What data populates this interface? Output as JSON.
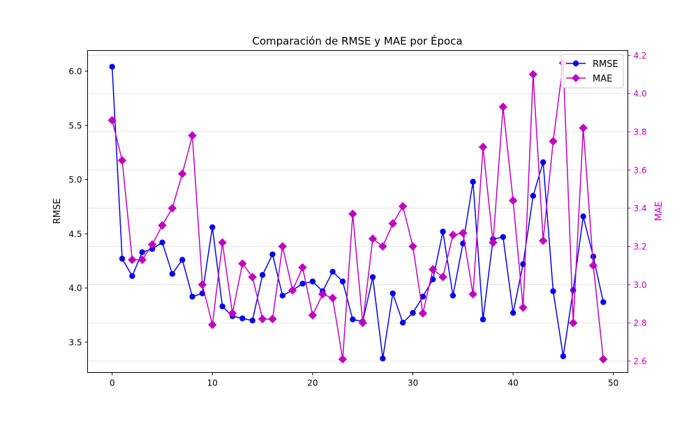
{
  "chart_data": {
    "type": "line",
    "title": "Comparación de RMSE y MAE por Época",
    "xlabel": "",
    "ylabel": "RMSE",
    "y2label": "MAE",
    "xlim": [
      -2.45,
      51.45
    ],
    "ylim": [
      3.22,
      6.19
    ],
    "y2lim": [
      2.54,
      4.225
    ],
    "xticks": [
      0,
      10,
      20,
      30,
      40,
      50
    ],
    "xtick_labels": [
      "0",
      "10",
      "20",
      "30",
      "40",
      "50"
    ],
    "yticks": [
      3.5,
      4.0,
      4.5,
      5.0,
      5.5,
      6.0
    ],
    "ytick_labels": [
      "3.5",
      "4.0",
      "4.5",
      "5.0",
      "5.5",
      "6.0"
    ],
    "y2ticks": [
      2.6,
      2.8,
      3.0,
      3.2,
      3.4,
      3.6,
      3.8,
      4.0,
      4.2
    ],
    "y2tick_labels": [
      "2.6",
      "2.8",
      "3.0",
      "3.2",
      "3.4",
      "3.6",
      "3.8",
      "4.0",
      "4.2"
    ],
    "grid": "horizontal, right axis",
    "legend_position": "top-right",
    "x": [
      0,
      1,
      2,
      3,
      4,
      5,
      6,
      7,
      8,
      9,
      10,
      11,
      12,
      13,
      14,
      15,
      16,
      17,
      18,
      19,
      20,
      21,
      22,
      23,
      24,
      25,
      26,
      27,
      28,
      29,
      30,
      31,
      32,
      33,
      34,
      35,
      36,
      37,
      38,
      39,
      40,
      41,
      42,
      43,
      44,
      45,
      46,
      47,
      48,
      49
    ],
    "series": [
      {
        "name": "RMSE",
        "axis": "left",
        "color": "#0000ee",
        "marker": "circle",
        "values": [
          6.04,
          4.27,
          4.11,
          4.33,
          4.36,
          4.42,
          4.13,
          4.26,
          3.92,
          3.95,
          4.56,
          3.83,
          3.74,
          3.72,
          3.7,
          4.12,
          4.31,
          3.93,
          3.98,
          4.04,
          4.06,
          3.97,
          4.15,
          4.06,
          3.71,
          3.69,
          4.1,
          3.35,
          3.95,
          3.68,
          3.77,
          3.92,
          4.08,
          4.52,
          3.93,
          4.41,
          4.98,
          3.71,
          4.45,
          4.47,
          3.77,
          4.22,
          4.85,
          5.16,
          3.97,
          3.37,
          3.98,
          4.66,
          4.29,
          3.87
        ]
      },
      {
        "name": "MAE",
        "axis": "right",
        "color": "#c000c0",
        "marker": "diamond",
        "values": [
          3.86,
          3.65,
          3.13,
          3.13,
          3.21,
          3.31,
          3.4,
          3.58,
          3.78,
          3.0,
          2.79,
          3.22,
          2.85,
          3.11,
          3.04,
          2.82,
          2.82,
          3.2,
          2.97,
          3.09,
          2.84,
          2.95,
          2.93,
          2.61,
          3.37,
          2.8,
          3.24,
          3.2,
          3.32,
          3.41,
          3.2,
          2.85,
          3.08,
          3.04,
          3.26,
          3.27,
          2.95,
          3.72,
          3.22,
          3.93,
          3.44,
          2.88,
          4.1,
          3.23,
          3.75,
          4.16,
          2.8,
          3.82,
          3.1,
          2.61
        ]
      }
    ]
  }
}
